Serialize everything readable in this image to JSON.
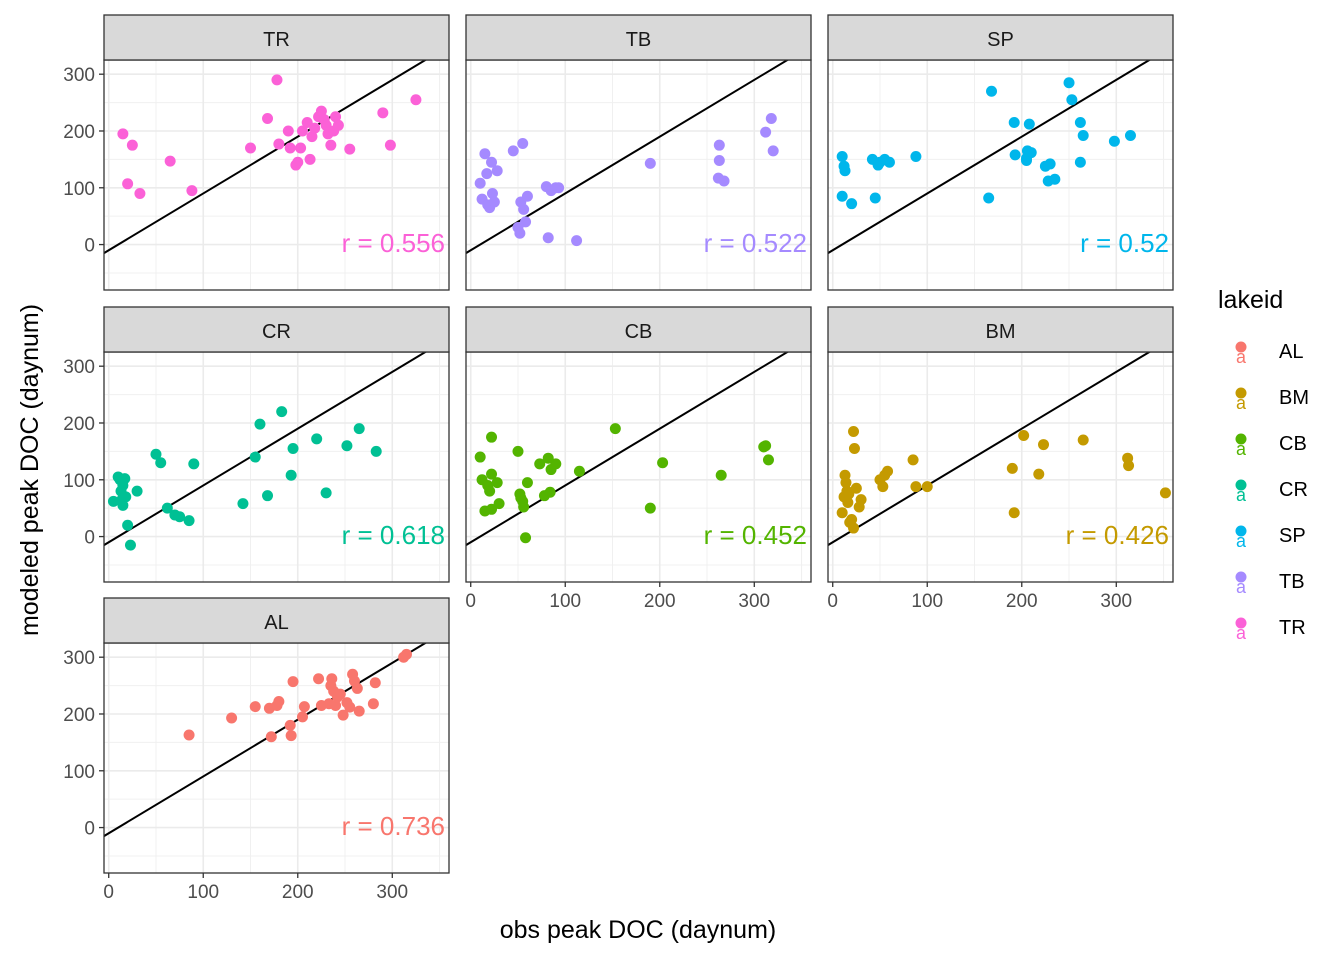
{
  "chart_data": {
    "type": "scatter",
    "xlabel": "obs peak DOC (daynum)",
    "ylabel": "modeled peak DOC (daynum)",
    "xlim": [
      -5,
      360
    ],
    "ylim": [
      -80,
      325
    ],
    "x_ticks": [
      0,
      100,
      200,
      300
    ],
    "y_ticks": [
      0,
      100,
      200,
      300
    ],
    "grid": true,
    "reference_line": {
      "intercept": -10,
      "slope": 1
    },
    "legend": {
      "title": "lakeid",
      "position": "right",
      "glyph": "a",
      "entries": [
        {
          "label": "AL",
          "color": "#F8766D"
        },
        {
          "label": "BM",
          "color": "#C49A00"
        },
        {
          "label": "CB",
          "color": "#53B400"
        },
        {
          "label": "CR",
          "color": "#00C094"
        },
        {
          "label": "SP",
          "color": "#00B6EB"
        },
        {
          "label": "TB",
          "color": "#A58AFF"
        },
        {
          "label": "TR",
          "color": "#FB61D7"
        }
      ]
    },
    "facets": [
      {
        "name": "TR",
        "color": "#FB61D7",
        "r_label": "r = 0.556",
        "points": [
          [
            15,
            195
          ],
          [
            25,
            175
          ],
          [
            20,
            107
          ],
          [
            33,
            90
          ],
          [
            65,
            147
          ],
          [
            88,
            95
          ],
          [
            150,
            170
          ],
          [
            168,
            222
          ],
          [
            178,
            290
          ],
          [
            180,
            177
          ],
          [
            190,
            200
          ],
          [
            192,
            170
          ],
          [
            198,
            140
          ],
          [
            200,
            145
          ],
          [
            203,
            170
          ],
          [
            205,
            200
          ],
          [
            210,
            215
          ],
          [
            213,
            150
          ],
          [
            215,
            190
          ],
          [
            218,
            205
          ],
          [
            222,
            225
          ],
          [
            225,
            235
          ],
          [
            228,
            220
          ],
          [
            230,
            210
          ],
          [
            232,
            195
          ],
          [
            235,
            175
          ],
          [
            238,
            200
          ],
          [
            240,
            225
          ],
          [
            243,
            210
          ],
          [
            255,
            168
          ],
          [
            290,
            232
          ],
          [
            298,
            175
          ],
          [
            325,
            255
          ]
        ]
      },
      {
        "name": "TB",
        "color": "#A58AFF",
        "r_label": "r = 0.522",
        "points": [
          [
            10,
            108
          ],
          [
            12,
            80
          ],
          [
            15,
            160
          ],
          [
            17,
            125
          ],
          [
            18,
            70
          ],
          [
            20,
            65
          ],
          [
            22,
            145
          ],
          [
            23,
            90
          ],
          [
            25,
            75
          ],
          [
            28,
            130
          ],
          [
            45,
            165
          ],
          [
            50,
            30
          ],
          [
            52,
            20
          ],
          [
            53,
            75
          ],
          [
            55,
            178
          ],
          [
            56,
            62
          ],
          [
            58,
            40
          ],
          [
            60,
            85
          ],
          [
            80,
            102
          ],
          [
            82,
            12
          ],
          [
            85,
            95
          ],
          [
            90,
            100
          ],
          [
            93,
            100
          ],
          [
            112,
            7
          ],
          [
            190,
            143
          ],
          [
            262,
            117
          ],
          [
            263,
            148
          ],
          [
            263,
            175
          ],
          [
            268,
            112
          ],
          [
            312,
            198
          ],
          [
            318,
            222
          ],
          [
            320,
            165
          ]
        ]
      },
      {
        "name": "SP",
        "color": "#00B6EB",
        "r_label": "r = 0.52",
        "points": [
          [
            10,
            155
          ],
          [
            10,
            85
          ],
          [
            12,
            138
          ],
          [
            13,
            130
          ],
          [
            20,
            72
          ],
          [
            42,
            150
          ],
          [
            45,
            82
          ],
          [
            48,
            140
          ],
          [
            50,
            145
          ],
          [
            55,
            150
          ],
          [
            60,
            145
          ],
          [
            88,
            155
          ],
          [
            165,
            82
          ],
          [
            168,
            270
          ],
          [
            192,
            215
          ],
          [
            193,
            158
          ],
          [
            205,
            148
          ],
          [
            205,
            152
          ],
          [
            206,
            165
          ],
          [
            208,
            212
          ],
          [
            210,
            162
          ],
          [
            225,
            138
          ],
          [
            228,
            112
          ],
          [
            230,
            142
          ],
          [
            235,
            115
          ],
          [
            250,
            285
          ],
          [
            253,
            255
          ],
          [
            262,
            215
          ],
          [
            262,
            145
          ],
          [
            265,
            192
          ],
          [
            298,
            182
          ],
          [
            315,
            192
          ]
        ]
      },
      {
        "name": "CR",
        "color": "#00C094",
        "r_label": "r = 0.618",
        "points": [
          [
            5,
            62
          ],
          [
            10,
            105
          ],
          [
            12,
            100
          ],
          [
            13,
            80
          ],
          [
            14,
            65
          ],
          [
            15,
            55
          ],
          [
            15,
            90
          ],
          [
            17,
            102
          ],
          [
            18,
            70
          ],
          [
            20,
            20
          ],
          [
            23,
            -15
          ],
          [
            30,
            80
          ],
          [
            50,
            145
          ],
          [
            55,
            130
          ],
          [
            62,
            50
          ],
          [
            70,
            38
          ],
          [
            75,
            35
          ],
          [
            85,
            28
          ],
          [
            90,
            128
          ],
          [
            142,
            58
          ],
          [
            155,
            140
          ],
          [
            160,
            198
          ],
          [
            168,
            72
          ],
          [
            183,
            220
          ],
          [
            193,
            108
          ],
          [
            195,
            155
          ],
          [
            220,
            172
          ],
          [
            230,
            77
          ],
          [
            252,
            160
          ],
          [
            265,
            190
          ],
          [
            283,
            150
          ]
        ]
      },
      {
        "name": "CB",
        "color": "#53B400",
        "r_label": "r = 0.452",
        "points": [
          [
            10,
            140
          ],
          [
            12,
            100
          ],
          [
            15,
            45
          ],
          [
            18,
            90
          ],
          [
            20,
            80
          ],
          [
            22,
            175
          ],
          [
            22,
            110
          ],
          [
            22,
            48
          ],
          [
            28,
            95
          ],
          [
            30,
            58
          ],
          [
            50,
            150
          ],
          [
            52,
            75
          ],
          [
            53,
            68
          ],
          [
            55,
            62
          ],
          [
            56,
            52
          ],
          [
            58,
            -2
          ],
          [
            60,
            95
          ],
          [
            73,
            128
          ],
          [
            78,
            72
          ],
          [
            82,
            138
          ],
          [
            84,
            78
          ],
          [
            85,
            118
          ],
          [
            90,
            128
          ],
          [
            115,
            115
          ],
          [
            153,
            190
          ],
          [
            190,
            50
          ],
          [
            203,
            130
          ],
          [
            265,
            108
          ],
          [
            310,
            158
          ],
          [
            312,
            160
          ],
          [
            315,
            135
          ]
        ]
      },
      {
        "name": "BM",
        "color": "#C49A00",
        "r_label": "r = 0.426",
        "points": [
          [
            10,
            42
          ],
          [
            12,
            70
          ],
          [
            13,
            108
          ],
          [
            14,
            95
          ],
          [
            15,
            80
          ],
          [
            16,
            60
          ],
          [
            17,
            75
          ],
          [
            18,
            25
          ],
          [
            20,
            30
          ],
          [
            22,
            185
          ],
          [
            22,
            15
          ],
          [
            23,
            155
          ],
          [
            25,
            85
          ],
          [
            28,
            52
          ],
          [
            30,
            65
          ],
          [
            50,
            100
          ],
          [
            53,
            88
          ],
          [
            55,
            108
          ],
          [
            58,
            115
          ],
          [
            85,
            135
          ],
          [
            88,
            88
          ],
          [
            100,
            88
          ],
          [
            190,
            120
          ],
          [
            192,
            42
          ],
          [
            202,
            178
          ],
          [
            218,
            110
          ],
          [
            223,
            162
          ],
          [
            265,
            170
          ],
          [
            312,
            138
          ],
          [
            313,
            125
          ],
          [
            352,
            77
          ]
        ]
      },
      {
        "name": "AL",
        "color": "#F8766D",
        "r_label": "r = 0.736",
        "points": [
          [
            85,
            163
          ],
          [
            130,
            193
          ],
          [
            155,
            213
          ],
          [
            170,
            210
          ],
          [
            172,
            160
          ],
          [
            178,
            215
          ],
          [
            180,
            222
          ],
          [
            192,
            180
          ],
          [
            193,
            162
          ],
          [
            195,
            257
          ],
          [
            205,
            195
          ],
          [
            207,
            213
          ],
          [
            222,
            262
          ],
          [
            225,
            215
          ],
          [
            233,
            218
          ],
          [
            235,
            250
          ],
          [
            236,
            262
          ],
          [
            238,
            240
          ],
          [
            240,
            215
          ],
          [
            242,
            230
          ],
          [
            245,
            235
          ],
          [
            248,
            198
          ],
          [
            252,
            220
          ],
          [
            255,
            212
          ],
          [
            258,
            270
          ],
          [
            260,
            258
          ],
          [
            263,
            245
          ],
          [
            265,
            205
          ],
          [
            280,
            218
          ],
          [
            282,
            255
          ],
          [
            312,
            300
          ],
          [
            315,
            305
          ]
        ]
      }
    ]
  }
}
